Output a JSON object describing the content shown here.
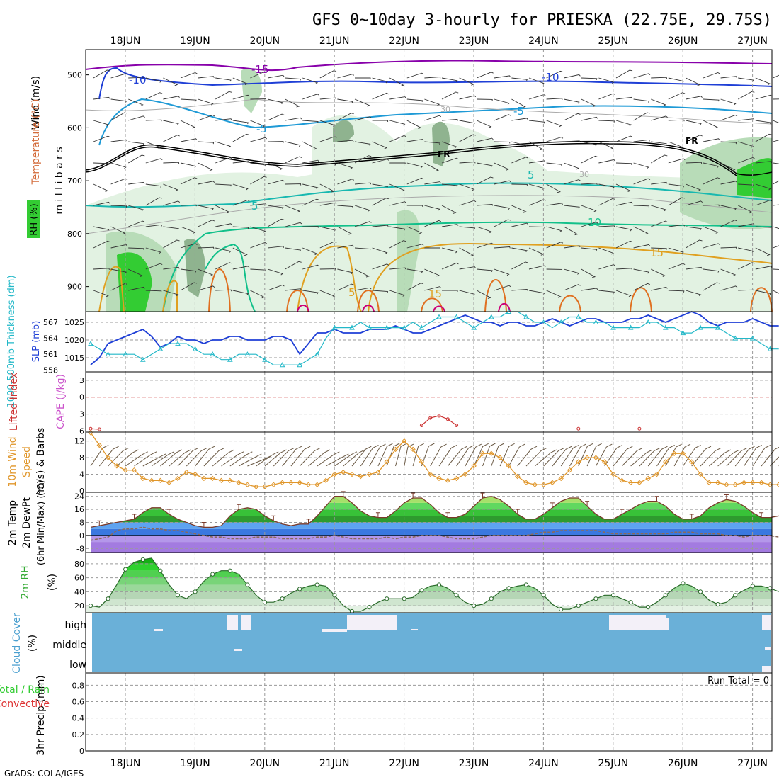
{
  "title": "GFS 0~10day 3-hourly for PRIESKA (22.75E, 29.75S)",
  "footer": "GrADS: COLA/IGES",
  "dates": [
    "18JUN",
    "19JUN",
    "20JUN",
    "21JUN",
    "22JUN",
    "23JUN",
    "24JUN",
    "25JUN",
    "26JUN",
    "27JUN"
  ],
  "colors": {
    "rh_light": "#e2f2e2",
    "rh_mid": "#b8dcb8",
    "rh_dark": "#8fb38f",
    "rh_green": "#33cc33",
    "temp_m15": "#8800aa",
    "temp_m10": "#1f3fd6",
    "temp_m5": "#1e9ad6",
    "temp_0": "#000000",
    "temp_5": "#17b8b0",
    "temp_10": "#12c08a",
    "temp_15": "#e0a020",
    "temp_20": "#e07020",
    "temp_25": "#cc0077",
    "slp": "#1f3fd6",
    "thickness": "#22b8c8",
    "cape": "#cc55cc",
    "li": "#cc3333",
    "wind10m": "#e0962a",
    "cloud": "#6ab0d8",
    "precip_total": "#33cc33",
    "precip_conv": "#dd3333"
  },
  "labels": {
    "pressure_axis": "m i l l i b a r s",
    "temperature": "Temperature (°C)",
    "wind": "Wind (m/s)",
    "rh_box": "RH (%)",
    "thickness": "1000-500mb Thickness (dm)",
    "slp": "SLP (mb)",
    "li": "Lifted Index",
    "cape": "CAPE (J/kg)",
    "wind10": "10m Wind",
    "speed": "Speed",
    "barbs": "(m/s) & Barbs",
    "temp2m": "2m Temp",
    "dewpt2m": "2m DewPt",
    "minmax": "(6hr Min/Max) (°C)",
    "rh2m": "2m RH",
    "pct": "(%)",
    "cloud": "Cloud Cover",
    "cloud_pct": "(%)",
    "precip_total": "Total / Rain",
    "precip_conv": "Convective",
    "precip": "3hr Precip (mm)",
    "run_total": "Run Total = 0",
    "cloud_high": "high",
    "cloud_middle": "middle",
    "cloud_low": "low"
  },
  "chart_data": [
    {
      "type": "contour",
      "panel": "upper-air",
      "title": "Temperature / Wind / RH cross-section",
      "ylabel": "millibars",
      "y_ticks": [
        500,
        600,
        700,
        800,
        900
      ],
      "ylim": [
        950,
        450
      ],
      "contour_labels": [
        "-15",
        "-10",
        "-10",
        "-5",
        "-5",
        "FR",
        "FR",
        "5",
        "5",
        "10",
        "15",
        "15",
        "5",
        "30",
        "30"
      ]
    },
    {
      "type": "line",
      "panel": "slp-thickness",
      "slp_ticks": [
        1015,
        1020,
        1025
      ],
      "thickness_ticks": [
        558,
        561,
        564,
        567
      ],
      "slp": [
        1013,
        1015,
        1019,
        1020,
        1021,
        1022,
        1023,
        1021,
        1018,
        1019,
        1021,
        1020,
        1020,
        1019,
        1020,
        1020,
        1021,
        1021,
        1020,
        1020,
        1020,
        1021,
        1021,
        1020,
        1016,
        1019,
        1022,
        1022,
        1023,
        1022,
        1022,
        1022,
        1023,
        1023,
        1023,
        1024,
        1023,
        1022,
        1022,
        1023,
        1024,
        1025,
        1026,
        1027,
        1026,
        1025,
        1025,
        1024,
        1025,
        1025,
        1024,
        1024,
        1025,
        1026,
        1025,
        1024,
        1025,
        1026,
        1026,
        1025,
        1025,
        1025,
        1026,
        1026,
        1027,
        1026,
        1025,
        1026,
        1027,
        1028,
        1027,
        1025,
        1024,
        1025,
        1025,
        1025,
        1026,
        1025,
        1024,
        1024
      ],
      "thickness": [
        563,
        562,
        561,
        561,
        561,
        561,
        560,
        561,
        562,
        563,
        563,
        563,
        562,
        561,
        561,
        560,
        560,
        561,
        561,
        561,
        560,
        559,
        559,
        559,
        559,
        560,
        561,
        564,
        566,
        566,
        566,
        567,
        566,
        566,
        566,
        566,
        566,
        567,
        566,
        567,
        568,
        568,
        568,
        567,
        566,
        567,
        568,
        568,
        569,
        569,
        568,
        567,
        567,
        566,
        567,
        568,
        568,
        567,
        567,
        567,
        566,
        566,
        566,
        566,
        567,
        567,
        566,
        566,
        565,
        565,
        566,
        566,
        566,
        565,
        564,
        564,
        564,
        563,
        562,
        562
      ]
    },
    {
      "type": "line",
      "panel": "cape-li",
      "li_ticks": [
        -3,
        0,
        3,
        6
      ],
      "cape_ticks": [
        6,
        3,
        0,
        -3
      ],
      "lifted_index_zero": 0,
      "lifted_index_x": [
        0,
        1,
        38,
        39,
        40,
        41,
        42,
        56,
        63
      ],
      "lifted_index": [
        5.6,
        5.7,
        5.0,
        3.7,
        3.3,
        3.9,
        5.0,
        5.6,
        5.6
      ]
    },
    {
      "type": "line",
      "panel": "wind10m",
      "ylim": [
        0,
        14
      ],
      "y_ticks": [
        0,
        4,
        8,
        12
      ],
      "speed": [
        14,
        11,
        8,
        6,
        5,
        5,
        3,
        2.5,
        2.5,
        2,
        3,
        4.5,
        4,
        3,
        3,
        2.5,
        2.5,
        2,
        1.5,
        1,
        1,
        1.5,
        2,
        2,
        2,
        1.5,
        1.5,
        2.5,
        4,
        4.5,
        4,
        3.5,
        4,
        4.5,
        7,
        10,
        12,
        10,
        7,
        4,
        3,
        2.5,
        3,
        4,
        6,
        9,
        9,
        8,
        6,
        3.5,
        2,
        1.5,
        1.5,
        2,
        3,
        5,
        7,
        8,
        8,
        7,
        4,
        2.5,
        2,
        2,
        3,
        4,
        7,
        9,
        9,
        7,
        4,
        2,
        2,
        1.5,
        1.5,
        2,
        2,
        2,
        1.5,
        1.5
      ],
      "barb_dirs": [
        210,
        220,
        230,
        240,
        250,
        250,
        260,
        250,
        240,
        240,
        230,
        230,
        220,
        230,
        240,
        250,
        250,
        260,
        270,
        250,
        240,
        230,
        220,
        220,
        230,
        240,
        250,
        260,
        250,
        240,
        220,
        210,
        200,
        190,
        180,
        170,
        160,
        170,
        180,
        200,
        210,
        220,
        210,
        200,
        190,
        180,
        180,
        190,
        200,
        220,
        230,
        240,
        230,
        220,
        210,
        200,
        190,
        190,
        200,
        210,
        220,
        230,
        240,
        230,
        220,
        210,
        200,
        200,
        210,
        220,
        230,
        240,
        240,
        230,
        220,
        210,
        210,
        220,
        230,
        230
      ]
    },
    {
      "type": "area",
      "panel": "temp2m",
      "ylim": [
        -10,
        26
      ],
      "y_ticks": [
        -8,
        0,
        8,
        16,
        24
      ],
      "temp": [
        5,
        6,
        7,
        8,
        9,
        10,
        14,
        17,
        17,
        13,
        10,
        8,
        6,
        5,
        5,
        6,
        12,
        16,
        17,
        16,
        12,
        9,
        7,
        6,
        7,
        7,
        12,
        18,
        24,
        24,
        20,
        15,
        12,
        11,
        11,
        15,
        20,
        23,
        23,
        19,
        14,
        11,
        11,
        13,
        18,
        23,
        24,
        22,
        18,
        13,
        10,
        10,
        13,
        17,
        21,
        23,
        23,
        18,
        13,
        10,
        10,
        13,
        16,
        19,
        21,
        21,
        18,
        13,
        10,
        10,
        12,
        17,
        20,
        22,
        21,
        18,
        14,
        11,
        11,
        12
      ],
      "dewpt": [
        -3,
        -2,
        -1,
        3,
        4,
        4,
        5,
        4,
        4,
        3,
        3,
        2,
        1,
        0,
        -1,
        -1,
        -2,
        -2,
        -2,
        -1,
        -1,
        -1,
        -2,
        -2,
        -2,
        -2,
        -1,
        -1,
        0,
        -1,
        -2,
        -2,
        -2,
        -2,
        -1,
        -2,
        -1,
        -1,
        0,
        0,
        0,
        -1,
        -2,
        -2,
        -2,
        -1,
        0,
        0,
        0,
        0,
        0,
        1,
        2,
        2,
        3,
        3,
        3,
        3,
        3,
        2,
        1,
        1,
        1,
        1,
        1,
        1,
        1,
        2,
        2,
        2,
        1,
        1,
        1,
        0,
        0,
        -1,
        0,
        0,
        0,
        -1
      ]
    },
    {
      "type": "area",
      "panel": "rh2m",
      "ylim": [
        10,
        95
      ],
      "y_ticks": [
        20,
        40,
        60,
        80
      ],
      "rh": [
        20,
        18,
        30,
        50,
        72,
        82,
        86,
        88,
        70,
        50,
        35,
        30,
        40,
        55,
        65,
        70,
        70,
        65,
        50,
        35,
        25,
        25,
        30,
        38,
        44,
        48,
        50,
        48,
        35,
        20,
        12,
        12,
        18,
        25,
        30,
        30,
        30,
        32,
        42,
        48,
        50,
        45,
        35,
        25,
        20,
        22,
        30,
        40,
        45,
        48,
        50,
        45,
        35,
        22,
        15,
        15,
        20,
        25,
        30,
        35,
        35,
        30,
        25,
        18,
        18,
        25,
        35,
        45,
        52,
        48,
        40,
        28,
        22,
        25,
        35,
        42,
        48,
        48,
        45,
        40
      ]
    },
    {
      "type": "heatmap",
      "panel": "cloud",
      "levels": [
        "high",
        "middle",
        "low"
      ]
    },
    {
      "type": "bar",
      "panel": "precip",
      "ylim": [
        0,
        0.9
      ],
      "y_ticks": [
        0,
        0.2,
        0.4,
        0.6,
        0.8
      ],
      "values": []
    }
  ]
}
